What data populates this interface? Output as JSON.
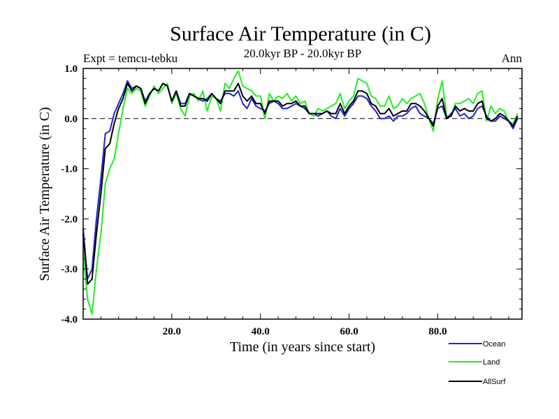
{
  "title": "Surface Air Temperature (in C)",
  "subtitle": "20.0kyr BP - 20.0kyr BP",
  "experiment": "Expt = temcu-tebku",
  "season": "Ann",
  "colors": {
    "Ocean": "#2222cc",
    "Land": "#22ee22",
    "AllSurf": "#000000",
    "axis": "#000000"
  },
  "chart_data": {
    "type": "line",
    "title": "Surface Air Temperature (in C)",
    "subtitle": "20.0kyr BP - 20.0kyr BP",
    "xlabel": "Time (in years since start)",
    "ylabel": "Surface Air Temperature (in C)",
    "xlim": [
      0,
      99
    ],
    "ylim": [
      -4.0,
      1.0
    ],
    "xticks": [
      20,
      40,
      60,
      80
    ],
    "xtick_labels": [
      "20.0",
      "40.0",
      "60.0",
      "80.0"
    ],
    "yticks": [
      1.0,
      0.0,
      -1.0,
      -2.0,
      -3.0,
      -4.0
    ],
    "ytick_labels": [
      "1.0",
      "0.0",
      "-1.0",
      "-2.0",
      "-3.0",
      "-4.0"
    ],
    "reference_line": 0.0,
    "legend_position": "bottom-right",
    "x_start": 0,
    "x_step": 1,
    "series": [
      {
        "name": "Ocean",
        "color": "#2222cc",
        "values": [
          -2.2,
          -3.2,
          -3.0,
          -2.0,
          -1.2,
          -0.3,
          -0.25,
          0.1,
          0.3,
          0.5,
          0.75,
          0.6,
          0.65,
          0.6,
          0.35,
          0.5,
          0.6,
          0.55,
          0.7,
          0.65,
          0.35,
          0.55,
          0.3,
          0.3,
          0.5,
          0.45,
          0.4,
          0.35,
          0.4,
          0.5,
          0.4,
          0.35,
          0.5,
          0.5,
          0.45,
          0.55,
          0.3,
          0.2,
          0.4,
          0.25,
          0.2,
          0.15,
          0.3,
          0.35,
          0.3,
          0.2,
          0.2,
          0.25,
          0.3,
          0.25,
          0.2,
          0.1,
          0.1,
          0.05,
          0.1,
          0.15,
          0.05,
          0.0,
          0.2,
          0.05,
          0.2,
          0.3,
          0.45,
          0.45,
          0.4,
          0.25,
          0.15,
          0.0,
          0.0,
          0.05,
          -0.05,
          0.05,
          0.05,
          0.1,
          0.2,
          0.25,
          0.1,
          0.05,
          0.0,
          -0.1,
          0.2,
          0.25,
          0.0,
          0.1,
          0.2,
          0.05,
          0.1,
          0.0,
          0.05,
          0.2,
          0.25,
          0.05,
          -0.05,
          -0.05,
          0.05,
          0.0,
          -0.05,
          -0.2,
          0.0
        ]
      },
      {
        "name": "Land",
        "color": "#22ee22",
        "values": [
          -2.7,
          -3.6,
          -3.9,
          -3.0,
          -2.3,
          -1.3,
          -1.0,
          -0.8,
          -0.3,
          0.2,
          0.6,
          0.5,
          0.6,
          0.55,
          0.25,
          0.45,
          0.65,
          0.5,
          0.6,
          0.7,
          0.3,
          0.5,
          0.2,
          0.05,
          0.45,
          0.5,
          0.35,
          0.55,
          0.15,
          0.45,
          0.4,
          0.15,
          0.7,
          0.6,
          0.8,
          0.95,
          0.65,
          0.6,
          0.55,
          0.45,
          0.45,
          0.0,
          0.5,
          0.35,
          0.45,
          0.4,
          0.5,
          0.35,
          0.45,
          0.3,
          0.35,
          0.1,
          0.05,
          0.2,
          0.15,
          0.2,
          0.25,
          0.3,
          0.5,
          0.2,
          0.35,
          0.45,
          0.8,
          0.75,
          0.7,
          0.45,
          0.4,
          0.25,
          0.25,
          0.45,
          0.2,
          0.25,
          0.4,
          0.3,
          0.4,
          0.45,
          0.5,
          0.3,
          0.0,
          -0.25,
          0.4,
          0.75,
          0.05,
          0.05,
          0.3,
          0.3,
          0.35,
          0.4,
          0.3,
          0.5,
          0.55,
          -0.05,
          0.25,
          0.1,
          0.2,
          0.15,
          -0.05,
          -0.1,
          0.1
        ]
      },
      {
        "name": "AllSurf",
        "color": "#000000",
        "values": [
          -2.3,
          -3.3,
          -3.2,
          -2.3,
          -1.5,
          -0.6,
          -0.5,
          -0.1,
          0.2,
          0.4,
          0.7,
          0.55,
          0.65,
          0.6,
          0.3,
          0.5,
          0.6,
          0.55,
          0.7,
          0.65,
          0.35,
          0.55,
          0.25,
          0.25,
          0.5,
          0.45,
          0.4,
          0.4,
          0.35,
          0.5,
          0.4,
          0.3,
          0.55,
          0.55,
          0.55,
          0.7,
          0.45,
          0.35,
          0.45,
          0.3,
          0.3,
          0.1,
          0.35,
          0.35,
          0.35,
          0.25,
          0.3,
          0.3,
          0.35,
          0.25,
          0.25,
          0.1,
          0.1,
          0.1,
          0.1,
          0.15,
          0.1,
          0.1,
          0.3,
          0.1,
          0.25,
          0.35,
          0.55,
          0.55,
          0.5,
          0.3,
          0.25,
          0.1,
          0.1,
          0.2,
          0.05,
          0.1,
          0.15,
          0.15,
          0.3,
          0.3,
          0.25,
          0.15,
          0.0,
          -0.15,
          0.25,
          0.4,
          0.0,
          0.05,
          0.25,
          0.15,
          0.2,
          0.15,
          0.15,
          0.3,
          0.35,
          0.0,
          -0.05,
          0.0,
          0.1,
          0.05,
          -0.05,
          -0.15,
          0.05
        ]
      }
    ]
  }
}
